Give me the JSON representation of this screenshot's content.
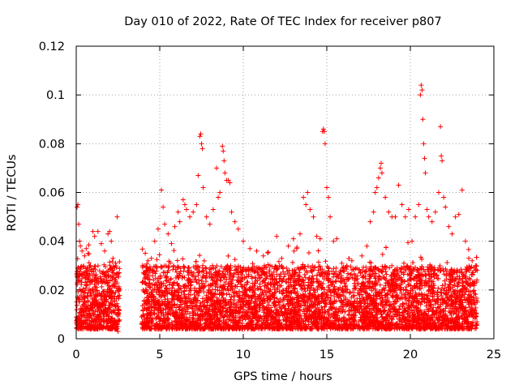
{
  "chart_data": {
    "type": "scatter",
    "title": "Day 010 of 2022, Rate Of TEC Index for receiver p807",
    "xlabel": "GPS time / hours",
    "ylabel": "ROTI / TECUs",
    "xlim": [
      0,
      25
    ],
    "ylim": [
      0,
      0.12
    ],
    "xticks": [
      0,
      5,
      10,
      15,
      20,
      25
    ],
    "xtick_labels": [
      "0",
      "5",
      "10",
      "15",
      "20",
      "25"
    ],
    "yticks": [
      0,
      0.02,
      0.04,
      0.06,
      0.08,
      0.1,
      0.12
    ],
    "ytick_labels": [
      "0",
      "0.02",
      "0.04",
      "0.06",
      "0.08",
      "0.1",
      "0.12"
    ],
    "grid": true,
    "marker": "+",
    "series_color": "#ff0000",
    "series": [
      {
        "points": [
          [
            0.05,
            0.054
          ],
          [
            0.1,
            0.055
          ],
          [
            0.15,
            0.047
          ],
          [
            0.2,
            0.04
          ],
          [
            0.25,
            0.038
          ],
          [
            0.35,
            0.036
          ],
          [
            0.5,
            0.034
          ],
          [
            0.6,
            0.037
          ],
          [
            0.7,
            0.035
          ],
          [
            0.85,
            0.03
          ],
          [
            1.0,
            0.044
          ],
          [
            1.1,
            0.042
          ],
          [
            1.3,
            0.044
          ],
          [
            1.5,
            0.039
          ],
          [
            1.7,
            0.036
          ],
          [
            1.9,
            0.043
          ],
          [
            2.0,
            0.044
          ],
          [
            2.1,
            0.04
          ],
          [
            2.2,
            0.033
          ],
          [
            2.45,
            0.05
          ],
          [
            2.5,
            0.003
          ],
          [
            3.95,
            0.023
          ],
          [
            4.0,
            0.02
          ],
          [
            4.1,
            0.019
          ],
          [
            4.2,
            0.012
          ],
          [
            4.3,
            0.032
          ],
          [
            4.5,
            0.033
          ],
          [
            4.7,
            0.04
          ],
          [
            4.9,
            0.045
          ],
          [
            5.1,
            0.061
          ],
          [
            5.2,
            0.054
          ],
          [
            5.3,
            0.047
          ],
          [
            5.5,
            0.043
          ],
          [
            5.7,
            0.039
          ],
          [
            5.9,
            0.046
          ],
          [
            6.1,
            0.052
          ],
          [
            6.2,
            0.048
          ],
          [
            6.4,
            0.057
          ],
          [
            6.5,
            0.055
          ],
          [
            6.6,
            0.053
          ],
          [
            6.8,
            0.05
          ],
          [
            7.0,
            0.052
          ],
          [
            7.2,
            0.055
          ],
          [
            7.3,
            0.067
          ],
          [
            7.4,
            0.083
          ],
          [
            7.45,
            0.084
          ],
          [
            7.5,
            0.08
          ],
          [
            7.55,
            0.078
          ],
          [
            7.6,
            0.062
          ],
          [
            7.8,
            0.05
          ],
          [
            8.0,
            0.047
          ],
          [
            8.2,
            0.053
          ],
          [
            8.4,
            0.07
          ],
          [
            8.5,
            0.058
          ],
          [
            8.6,
            0.06
          ],
          [
            8.75,
            0.079
          ],
          [
            8.8,
            0.077
          ],
          [
            8.85,
            0.073
          ],
          [
            8.9,
            0.068
          ],
          [
            9.0,
            0.065
          ],
          [
            9.1,
            0.065
          ],
          [
            9.2,
            0.064
          ],
          [
            9.3,
            0.052
          ],
          [
            9.5,
            0.048
          ],
          [
            9.7,
            0.045
          ],
          [
            10.0,
            0.04
          ],
          [
            10.4,
            0.037
          ],
          [
            10.8,
            0.036
          ],
          [
            11.2,
            0.034
          ],
          [
            11.6,
            0.03
          ],
          [
            12.0,
            0.042
          ],
          [
            12.3,
            0.033
          ],
          [
            12.7,
            0.038
          ],
          [
            13.0,
            0.041
          ],
          [
            13.2,
            0.037
          ],
          [
            13.4,
            0.043
          ],
          [
            13.6,
            0.058
          ],
          [
            13.75,
            0.055
          ],
          [
            13.85,
            0.06
          ],
          [
            14.0,
            0.053
          ],
          [
            14.2,
            0.05
          ],
          [
            14.4,
            0.042
          ],
          [
            14.6,
            0.041
          ],
          [
            14.75,
            0.085
          ],
          [
            14.8,
            0.086
          ],
          [
            14.85,
            0.085
          ],
          [
            14.9,
            0.08
          ],
          [
            15.0,
            0.062
          ],
          [
            15.1,
            0.058
          ],
          [
            15.2,
            0.05
          ],
          [
            15.4,
            0.04
          ],
          [
            15.6,
            0.041
          ],
          [
            15.9,
            0.031
          ],
          [
            16.2,
            0.03
          ],
          [
            16.5,
            0.032
          ],
          [
            16.8,
            0.029
          ],
          [
            17.1,
            0.034
          ],
          [
            17.4,
            0.038
          ],
          [
            17.6,
            0.048
          ],
          [
            17.8,
            0.052
          ],
          [
            17.9,
            0.06
          ],
          [
            18.0,
            0.062
          ],
          [
            18.1,
            0.066
          ],
          [
            18.2,
            0.07
          ],
          [
            18.25,
            0.072
          ],
          [
            18.3,
            0.068
          ],
          [
            18.5,
            0.058
          ],
          [
            18.7,
            0.052
          ],
          [
            18.9,
            0.05
          ],
          [
            19.1,
            0.05
          ],
          [
            19.3,
            0.063
          ],
          [
            19.5,
            0.055
          ],
          [
            19.7,
            0.05
          ],
          [
            19.9,
            0.053
          ],
          [
            20.1,
            0.04
          ],
          [
            20.3,
            0.05
          ],
          [
            20.5,
            0.055
          ],
          [
            20.6,
            0.1
          ],
          [
            20.65,
            0.104
          ],
          [
            20.7,
            0.102
          ],
          [
            20.75,
            0.09
          ],
          [
            20.8,
            0.08
          ],
          [
            20.85,
            0.074
          ],
          [
            20.9,
            0.068
          ],
          [
            21.0,
            0.053
          ],
          [
            21.1,
            0.05
          ],
          [
            21.3,
            0.048
          ],
          [
            21.5,
            0.052
          ],
          [
            21.7,
            0.06
          ],
          [
            21.8,
            0.087
          ],
          [
            21.85,
            0.075
          ],
          [
            21.9,
            0.073
          ],
          [
            22.0,
            0.058
          ],
          [
            22.1,
            0.054
          ],
          [
            22.3,
            0.046
          ],
          [
            22.5,
            0.043
          ],
          [
            22.7,
            0.05
          ],
          [
            22.9,
            0.051
          ],
          [
            23.1,
            0.061
          ],
          [
            23.3,
            0.04
          ],
          [
            23.5,
            0.033
          ],
          [
            23.7,
            0.032
          ],
          [
            23.9,
            0.03
          ],
          [
            24.0,
            0.028
          ]
        ]
      }
    ],
    "dense_band": {
      "segments": [
        [
          0,
          2.6
        ],
        [
          3.9,
          24.0
        ]
      ],
      "y_min": 0.004,
      "typical_max": 0.03,
      "note_hidden": true
    }
  }
}
